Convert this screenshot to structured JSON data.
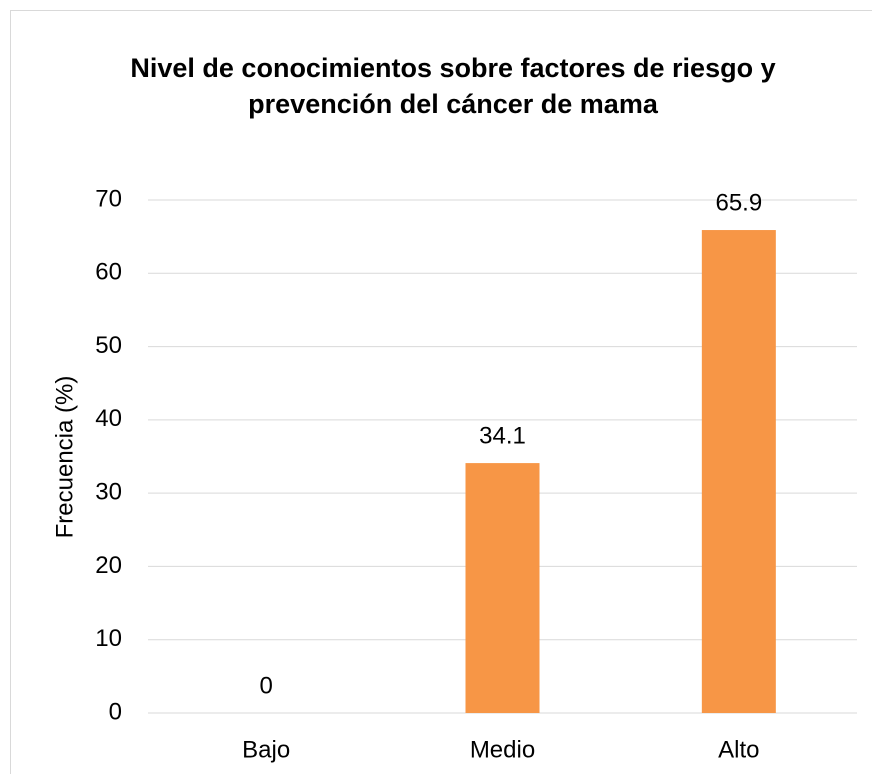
{
  "chart_data": {
    "type": "bar",
    "title": "Nivel de conocimientos sobre factores de riesgo y prevención del cáncer de mama",
    "y_label": "Frecuencia (%)",
    "categories": [
      "Bajo",
      "Medio",
      "Alto"
    ],
    "values": [
      0,
      34.1,
      65.9
    ],
    "color": "#f79646",
    "ylim": [
      0,
      70
    ],
    "yticks": [
      0,
      10,
      20,
      30,
      40,
      50,
      60,
      70
    ],
    "grid": true
  }
}
